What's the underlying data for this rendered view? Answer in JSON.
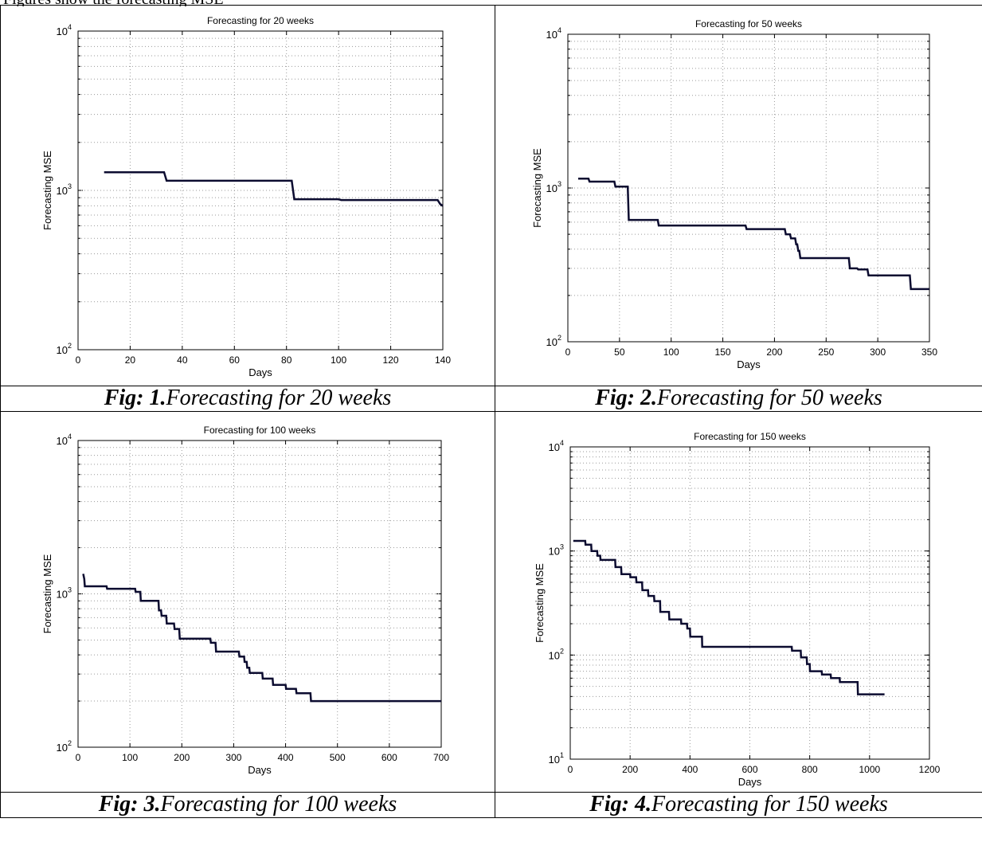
{
  "top_text": "Figures show the forecasting MSE",
  "captions": [
    {
      "prefix": "Fig: 1.",
      "text": "Forecasting for 20 weeks"
    },
    {
      "prefix": "Fig: 2.",
      "text": "Forecasting for 50 weeks"
    },
    {
      "prefix": "Fig: 3.",
      "text": "Forecasting for 100 weeks"
    },
    {
      "prefix": "Fig: 4.",
      "text": "Forecasting for 150 weeks"
    }
  ],
  "colors": {
    "line": "#0c0c30",
    "grid": "#9a9a9a"
  },
  "chart_data": [
    {
      "type": "line",
      "title": "Forecasting for 20 weeks",
      "xlabel": "Days",
      "ylabel": "Forecasting MSE",
      "xlim": [
        0,
        140
      ],
      "ylim": [
        100,
        10000
      ],
      "yscale": "log",
      "grid": true,
      "xticks": [
        0,
        20,
        40,
        60,
        80,
        100,
        120,
        140
      ],
      "yticks": [
        {
          "exp": "2"
        },
        {
          "exp": "3"
        },
        {
          "exp": "4"
        }
      ],
      "series": [
        {
          "x": [
            10,
            33,
            34,
            82,
            83,
            100,
            101,
            138,
            139,
            140
          ],
          "y": [
            1300,
            1300,
            1150,
            1150,
            880,
            880,
            870,
            870,
            820,
            800
          ]
        }
      ]
    },
    {
      "type": "line",
      "title": "Forecasting for 50 weeks",
      "xlabel": "Days",
      "ylabel": "Forecasting MSE",
      "xlim": [
        0,
        350
      ],
      "ylim": [
        100,
        10000
      ],
      "yscale": "log",
      "grid": true,
      "xticks": [
        0,
        50,
        100,
        150,
        200,
        250,
        300,
        350
      ],
      "yticks": [
        {
          "exp": "2"
        },
        {
          "exp": "3"
        },
        {
          "exp": "4"
        }
      ],
      "series": [
        {
          "x": [
            10,
            20,
            21,
            45,
            46,
            58,
            59,
            87,
            88,
            172,
            173,
            210,
            211,
            215,
            216,
            220,
            221,
            222,
            223,
            224,
            225,
            272,
            273,
            280,
            281,
            290,
            291,
            331,
            332,
            350
          ],
          "y": [
            1150,
            1150,
            1100,
            1100,
            1020,
            1020,
            620,
            620,
            570,
            570,
            540,
            540,
            500,
            500,
            470,
            470,
            430,
            430,
            390,
            390,
            350,
            350,
            300,
            300,
            295,
            295,
            270,
            270,
            220,
            220
          ]
        }
      ]
    },
    {
      "type": "line",
      "title": "Forecasting for 100 weeks",
      "xlabel": "Days",
      "ylabel": "Forecasting MSE",
      "xlim": [
        0,
        700
      ],
      "ylim": [
        100,
        10000
      ],
      "yscale": "log",
      "grid": true,
      "xticks": [
        0,
        100,
        200,
        300,
        400,
        500,
        600,
        700
      ],
      "yticks": [
        {
          "exp": "2"
        },
        {
          "exp": "3"
        },
        {
          "exp": "4"
        }
      ],
      "series": [
        {
          "x": [
            10,
            12,
            13,
            55,
            56,
            110,
            111,
            120,
            121,
            155,
            156,
            160,
            161,
            170,
            171,
            185,
            186,
            195,
            196,
            255,
            256,
            265,
            266,
            310,
            311,
            320,
            321,
            325,
            326,
            330,
            331,
            355,
            356,
            375,
            376,
            400,
            401,
            420,
            421,
            448,
            449,
            700
          ],
          "y": [
            1350,
            1250,
            1120,
            1120,
            1080,
            1080,
            1030,
            1030,
            900,
            900,
            780,
            780,
            720,
            720,
            640,
            640,
            590,
            590,
            510,
            510,
            480,
            480,
            420,
            420,
            390,
            390,
            360,
            360,
            330,
            330,
            305,
            305,
            280,
            280,
            255,
            255,
            240,
            240,
            225,
            225,
            200,
            200
          ]
        }
      ]
    },
    {
      "type": "line",
      "title": "Forecasting for 150 weeks",
      "xlabel": "Days",
      "ylabel": "Forecasting MSE",
      "xlim": [
        0,
        1200
      ],
      "ylim": [
        10,
        10000
      ],
      "yscale": "log",
      "grid": true,
      "xticks": [
        0,
        200,
        400,
        600,
        800,
        1000,
        1200
      ],
      "yticks": [
        {
          "exp": "1"
        },
        {
          "exp": "2"
        },
        {
          "exp": "3"
        },
        {
          "exp": "4"
        }
      ],
      "series": [
        {
          "x": [
            10,
            50,
            51,
            70,
            71,
            90,
            91,
            100,
            101,
            150,
            151,
            170,
            171,
            200,
            201,
            220,
            221,
            240,
            241,
            260,
            261,
            280,
            281,
            300,
            301,
            330,
            331,
            370,
            371,
            390,
            391,
            400,
            401,
            440,
            441,
            740,
            741,
            770,
            771,
            790,
            791,
            800,
            801,
            840,
            841,
            870,
            871,
            900,
            901,
            960,
            961,
            1050
          ],
          "y": [
            1250,
            1250,
            1150,
            1150,
            1000,
            1000,
            900,
            900,
            820,
            820,
            700,
            700,
            600,
            600,
            560,
            560,
            500,
            500,
            420,
            420,
            370,
            370,
            330,
            330,
            260,
            260,
            220,
            220,
            200,
            200,
            180,
            180,
            150,
            150,
            120,
            120,
            110,
            110,
            95,
            95,
            82,
            82,
            70,
            70,
            65,
            65,
            60,
            60,
            55,
            55,
            42,
            42
          ]
        }
      ]
    }
  ]
}
